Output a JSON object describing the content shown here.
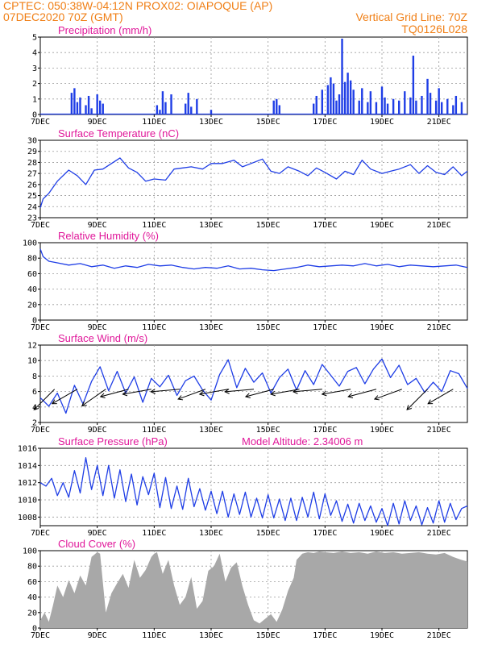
{
  "header": {
    "line1": "CPTEC:   050:38W-04:12N  PROX02: OIAPOQUE (AP)",
    "line2": "07DEC2020 70Z (GMT)",
    "right1": "Vertical Grid Line: 70Z",
    "right2": "TQ0126L028"
  },
  "colors": {
    "line": "#1f3ee6",
    "cloud": "#a8a8a8",
    "header": "#f07f16",
    "title": "#e0189a",
    "grid": "#9a9a9a"
  },
  "chart_data": [
    {
      "id": "precip",
      "type": "bar",
      "title": "Precipitation (mm/h)",
      "ylim": [
        0,
        5
      ],
      "yticks": [
        0,
        1,
        2,
        3,
        4,
        5
      ],
      "xticks": [
        "7DEC",
        "9DEC",
        "11DEC",
        "13DEC",
        "15DEC",
        "17DEC",
        "19DEC",
        "21DEC"
      ],
      "x": [
        1.1,
        1.2,
        1.3,
        1.4,
        1.6,
        1.7,
        1.8,
        2.0,
        2.1,
        2.2,
        4.1,
        4.2,
        4.3,
        4.4,
        4.6,
        5.1,
        5.2,
        5.3,
        5.5,
        6.0,
        8.2,
        8.3,
        8.4,
        9.6,
        9.7,
        9.9,
        10.1,
        10.2,
        10.3,
        10.4,
        10.5,
        10.6,
        10.7,
        10.8,
        10.9,
        11.0,
        11.2,
        11.3,
        11.5,
        11.6,
        11.8,
        12.0,
        12.1,
        12.2,
        12.4,
        12.6,
        12.8,
        13.0,
        13.1,
        13.2,
        13.4,
        13.6,
        13.7,
        13.9,
        14.0,
        14.1,
        14.3,
        14.5,
        14.6,
        14.8
      ],
      "values": [
        1.4,
        1.7,
        0.8,
        1.1,
        0.6,
        1.2,
        0.4,
        1.3,
        0.9,
        0.7,
        0.6,
        0.3,
        1.5,
        0.8,
        1.3,
        0.7,
        1.4,
        0.5,
        1.0,
        0.3,
        0.9,
        1.0,
        0.6,
        0.7,
        1.2,
        1.6,
        1.9,
        2.4,
        2.0,
        0.9,
        1.3,
        4.9,
        2.1,
        2.7,
        2.2,
        1.6,
        0.9,
        1.7,
        0.8,
        1.5,
        0.8,
        1.8,
        1.1,
        0.7,
        1.0,
        0.9,
        1.5,
        1.1,
        3.8,
        0.9,
        1.2,
        2.3,
        1.4,
        0.9,
        1.7,
        0.8,
        1.0,
        0.6,
        1.2,
        0.8
      ]
    },
    {
      "id": "temp",
      "type": "line",
      "title": "Surface Temperature (nC)",
      "ylim": [
        23,
        30
      ],
      "yticks": [
        23,
        24,
        25,
        26,
        27,
        28,
        29,
        30
      ],
      "xticks": [
        "7DEC",
        "9DEC",
        "11DEC",
        "13DEC",
        "15DEC",
        "17DEC",
        "19DEC",
        "21DEC"
      ],
      "x": [
        0.0,
        0.1,
        0.3,
        0.6,
        1.0,
        1.3,
        1.6,
        1.9,
        2.2,
        2.5,
        2.8,
        3.1,
        3.4,
        3.7,
        4.0,
        4.4,
        4.7,
        5.0,
        5.3,
        5.7,
        6.0,
        6.4,
        6.8,
        7.1,
        7.4,
        7.8,
        8.1,
        8.4,
        8.7,
        9.1,
        9.4,
        9.7,
        10.0,
        10.4,
        10.7,
        11.0,
        11.3,
        11.6,
        12.0,
        12.3,
        12.6,
        13.0,
        13.3,
        13.6,
        13.9,
        14.2,
        14.5,
        14.8,
        15.0
      ],
      "values": [
        23.9,
        24.7,
        25.2,
        26.3,
        27.3,
        26.8,
        26.0,
        27.3,
        27.4,
        27.9,
        28.4,
        27.5,
        27.1,
        26.3,
        26.5,
        26.4,
        27.4,
        27.5,
        27.6,
        27.4,
        27.9,
        27.9,
        28.2,
        27.6,
        27.9,
        28.3,
        27.2,
        27.0,
        27.6,
        27.2,
        26.8,
        27.5,
        27.1,
        26.5,
        27.2,
        26.9,
        28.2,
        27.4,
        27.0,
        27.2,
        27.4,
        27.8,
        27.0,
        27.7,
        27.1,
        26.9,
        27.6,
        26.8,
        27.2
      ]
    },
    {
      "id": "rh",
      "type": "line",
      "title": "Relative Humidity (%)",
      "ylim": [
        0,
        100
      ],
      "yticks": [
        0,
        20,
        40,
        60,
        80,
        100
      ],
      "xticks": [
        "7DEC",
        "9DEC",
        "11DEC",
        "13DEC",
        "15DEC",
        "17DEC",
        "19DEC",
        "21DEC"
      ],
      "x": [
        0.0,
        0.1,
        0.3,
        0.6,
        1.0,
        1.4,
        1.8,
        2.2,
        2.6,
        3.0,
        3.4,
        3.8,
        4.2,
        4.6,
        5.0,
        5.4,
        5.8,
        6.2,
        6.6,
        7.0,
        7.4,
        7.8,
        8.2,
        8.6,
        9.0,
        9.4,
        9.8,
        10.2,
        10.6,
        11.0,
        11.4,
        11.8,
        12.2,
        12.6,
        13.0,
        13.4,
        13.8,
        14.2,
        14.6,
        15.0
      ],
      "values": [
        92,
        82,
        76,
        74,
        71,
        73,
        69,
        71,
        67,
        70,
        68,
        72,
        70,
        71,
        68,
        66,
        68,
        67,
        70,
        66,
        67,
        65,
        64,
        66,
        68,
        71,
        69,
        70,
        71,
        70,
        73,
        70,
        72,
        69,
        71,
        70,
        69,
        70,
        71,
        68
      ]
    },
    {
      "id": "wind",
      "type": "line",
      "title": "Surface Wind (m/s)",
      "ylim": [
        2,
        12
      ],
      "yticks": [
        2,
        4,
        6,
        8,
        10,
        12
      ],
      "xticks": [
        "7DEC",
        "9DEC",
        "11DEC",
        "13DEC",
        "15DEC",
        "17DEC",
        "19DEC",
        "21DEC"
      ],
      "x": [
        0.0,
        0.3,
        0.6,
        0.9,
        1.2,
        1.5,
        1.8,
        2.1,
        2.4,
        2.7,
        3.0,
        3.3,
        3.6,
        3.9,
        4.2,
        4.5,
        4.8,
        5.1,
        5.4,
        5.7,
        6.0,
        6.3,
        6.6,
        6.9,
        7.2,
        7.5,
        7.8,
        8.1,
        8.4,
        8.7,
        9.0,
        9.3,
        9.6,
        9.9,
        10.2,
        10.5,
        10.8,
        11.1,
        11.4,
        11.7,
        12.0,
        12.3,
        12.6,
        12.9,
        13.2,
        13.5,
        13.8,
        14.1,
        14.4,
        14.7,
        15.0
      ],
      "values": [
        5.2,
        4.1,
        5.8,
        3.2,
        6.8,
        4.4,
        7.3,
        9.2,
        6.1,
        8.6,
        5.8,
        7.9,
        4.6,
        7.7,
        6.6,
        8.1,
        5.5,
        7.4,
        8.0,
        6.2,
        4.9,
        8.2,
        10.1,
        6.5,
        9.0,
        7.2,
        8.4,
        5.8,
        7.8,
        8.9,
        6.2,
        8.7,
        6.9,
        9.5,
        8.1,
        6.7,
        8.6,
        9.1,
        7.0,
        8.9,
        10.2,
        7.8,
        9.4,
        6.9,
        7.7,
        5.9,
        7.2,
        6.0,
        8.7,
        8.3,
        6.4
      ],
      "arrows_x": [
        0.5,
        1.3,
        2.3,
        3.1,
        3.9,
        4.9,
        5.8,
        6.6,
        7.5,
        8.2,
        9.1,
        9.9,
        10.9,
        11.8,
        12.7,
        13.6,
        14.5
      ],
      "arrows_dir": [
        -135,
        -150,
        -145,
        -165,
        -170,
        -175,
        -160,
        -170,
        -175,
        -165,
        -170,
        -175,
        -170,
        -165,
        -160,
        -135,
        -150
      ]
    },
    {
      "id": "pressure",
      "type": "line",
      "title": "Surface Pressure (hPa)",
      "annotation": "Model Altitude: 2.34006 m",
      "ylim": [
        1007,
        1016
      ],
      "yticks": [
        1008,
        1010,
        1012,
        1014,
        1016
      ],
      "xticks": [
        "7DEC",
        "9DEC",
        "11DEC",
        "13DEC",
        "15DEC",
        "17DEC",
        "19DEC",
        "21DEC"
      ],
      "x": [
        0.0,
        0.2,
        0.4,
        0.6,
        0.8,
        1.0,
        1.2,
        1.4,
        1.6,
        1.8,
        2.0,
        2.2,
        2.4,
        2.6,
        2.8,
        3.0,
        3.2,
        3.4,
        3.6,
        3.8,
        4.0,
        4.2,
        4.4,
        4.6,
        4.8,
        5.0,
        5.2,
        5.4,
        5.6,
        5.8,
        6.0,
        6.2,
        6.4,
        6.6,
        6.8,
        7.0,
        7.2,
        7.4,
        7.6,
        7.8,
        8.0,
        8.2,
        8.4,
        8.6,
        8.8,
        9.0,
        9.2,
        9.4,
        9.6,
        9.8,
        10.0,
        10.2,
        10.4,
        10.6,
        10.8,
        11.0,
        11.2,
        11.4,
        11.6,
        11.8,
        12.0,
        12.2,
        12.4,
        12.6,
        12.8,
        13.0,
        13.2,
        13.4,
        13.6,
        13.8,
        14.0,
        14.2,
        14.4,
        14.6,
        14.8,
        15.0
      ],
      "values": [
        1012.0,
        1011.6,
        1012.5,
        1010.5,
        1012.0,
        1010.3,
        1013.4,
        1010.8,
        1014.9,
        1011.2,
        1014.0,
        1010.5,
        1014.0,
        1010.2,
        1013.5,
        1009.8,
        1013.0,
        1009.4,
        1012.7,
        1010.6,
        1013.1,
        1009.1,
        1012.6,
        1009.0,
        1011.6,
        1008.9,
        1012.5,
        1009.2,
        1011.3,
        1008.8,
        1011.0,
        1008.4,
        1011.0,
        1008.0,
        1010.7,
        1008.3,
        1010.9,
        1008.0,
        1010.2,
        1007.9,
        1010.6,
        1007.9,
        1010.1,
        1007.6,
        1010.2,
        1007.6,
        1010.3,
        1008.0,
        1010.9,
        1007.8,
        1010.7,
        1008.2,
        1009.9,
        1007.5,
        1009.5,
        1007.3,
        1009.6,
        1007.6,
        1009.3,
        1007.4,
        1009.0,
        1007.0,
        1009.6,
        1007.2,
        1009.9,
        1007.6,
        1009.3,
        1007.1,
        1009.1,
        1007.3,
        1009.9,
        1007.4,
        1009.6,
        1007.7,
        1009.0,
        1009.3
      ]
    },
    {
      "id": "cloud",
      "type": "area",
      "title": "Cloud Cover (%)",
      "ylim": [
        0,
        100
      ],
      "yticks": [
        0,
        20,
        40,
        60,
        80,
        100
      ],
      "xticks": [
        "7DEC",
        "9DEC",
        "11DEC",
        "13DEC",
        "15DEC",
        "17DEC",
        "19DEC",
        "21DEC"
      ],
      "x": [
        0.0,
        0.15,
        0.3,
        0.45,
        0.6,
        0.8,
        1.0,
        1.2,
        1.4,
        1.6,
        1.8,
        2.0,
        2.1,
        2.3,
        2.5,
        2.7,
        2.9,
        3.1,
        3.3,
        3.5,
        3.7,
        3.9,
        4.0,
        4.1,
        4.3,
        4.5,
        4.7,
        4.9,
        5.1,
        5.3,
        5.5,
        5.7,
        5.9,
        6.1,
        6.3,
        6.5,
        6.7,
        6.9,
        7.1,
        7.3,
        7.5,
        7.7,
        7.9,
        8.1,
        8.3,
        8.5,
        8.7,
        8.9,
        9.0,
        9.2,
        9.4,
        9.6,
        9.8,
        10.0,
        10.3,
        10.6,
        10.9,
        11.2,
        11.5,
        11.8,
        12.1,
        12.4,
        12.7,
        13.0,
        13.3,
        13.6,
        13.9,
        14.2,
        14.5,
        14.8,
        15.0
      ],
      "values": [
        10,
        20,
        8,
        30,
        55,
        40,
        62,
        45,
        68,
        55,
        92,
        98,
        96,
        20,
        45,
        58,
        70,
        52,
        88,
        65,
        75,
        92,
        96,
        98,
        70,
        88,
        55,
        30,
        40,
        66,
        25,
        35,
        74,
        80,
        96,
        60,
        78,
        85,
        54,
        30,
        10,
        6,
        12,
        18,
        8,
        24,
        48,
        65,
        88,
        96,
        98,
        97,
        99,
        98,
        97,
        99,
        97,
        98,
        96,
        99,
        97,
        98,
        96,
        97,
        98,
        96,
        95,
        97,
        92,
        88,
        86
      ]
    }
  ]
}
